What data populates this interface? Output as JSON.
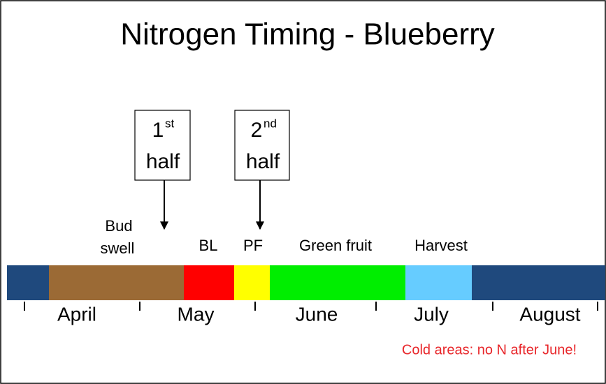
{
  "title": "Nitrogen Timing - Blueberry",
  "boxes": [
    {
      "number": "1",
      "suffix": "st",
      "word": "half"
    },
    {
      "number": "2",
      "suffix": "nd",
      "word": "half"
    }
  ],
  "stages": [
    {
      "lines": [
        "Bud",
        "swell"
      ]
    },
    {
      "lines": [
        "BL"
      ]
    },
    {
      "lines": [
        "PF"
      ]
    },
    {
      "lines": [
        "Green fruit"
      ]
    },
    {
      "lines": [
        "Harvest"
      ]
    }
  ],
  "months": [
    "April",
    "May",
    "June",
    "July",
    "August"
  ],
  "note": "Cold areas: no N after June!"
}
